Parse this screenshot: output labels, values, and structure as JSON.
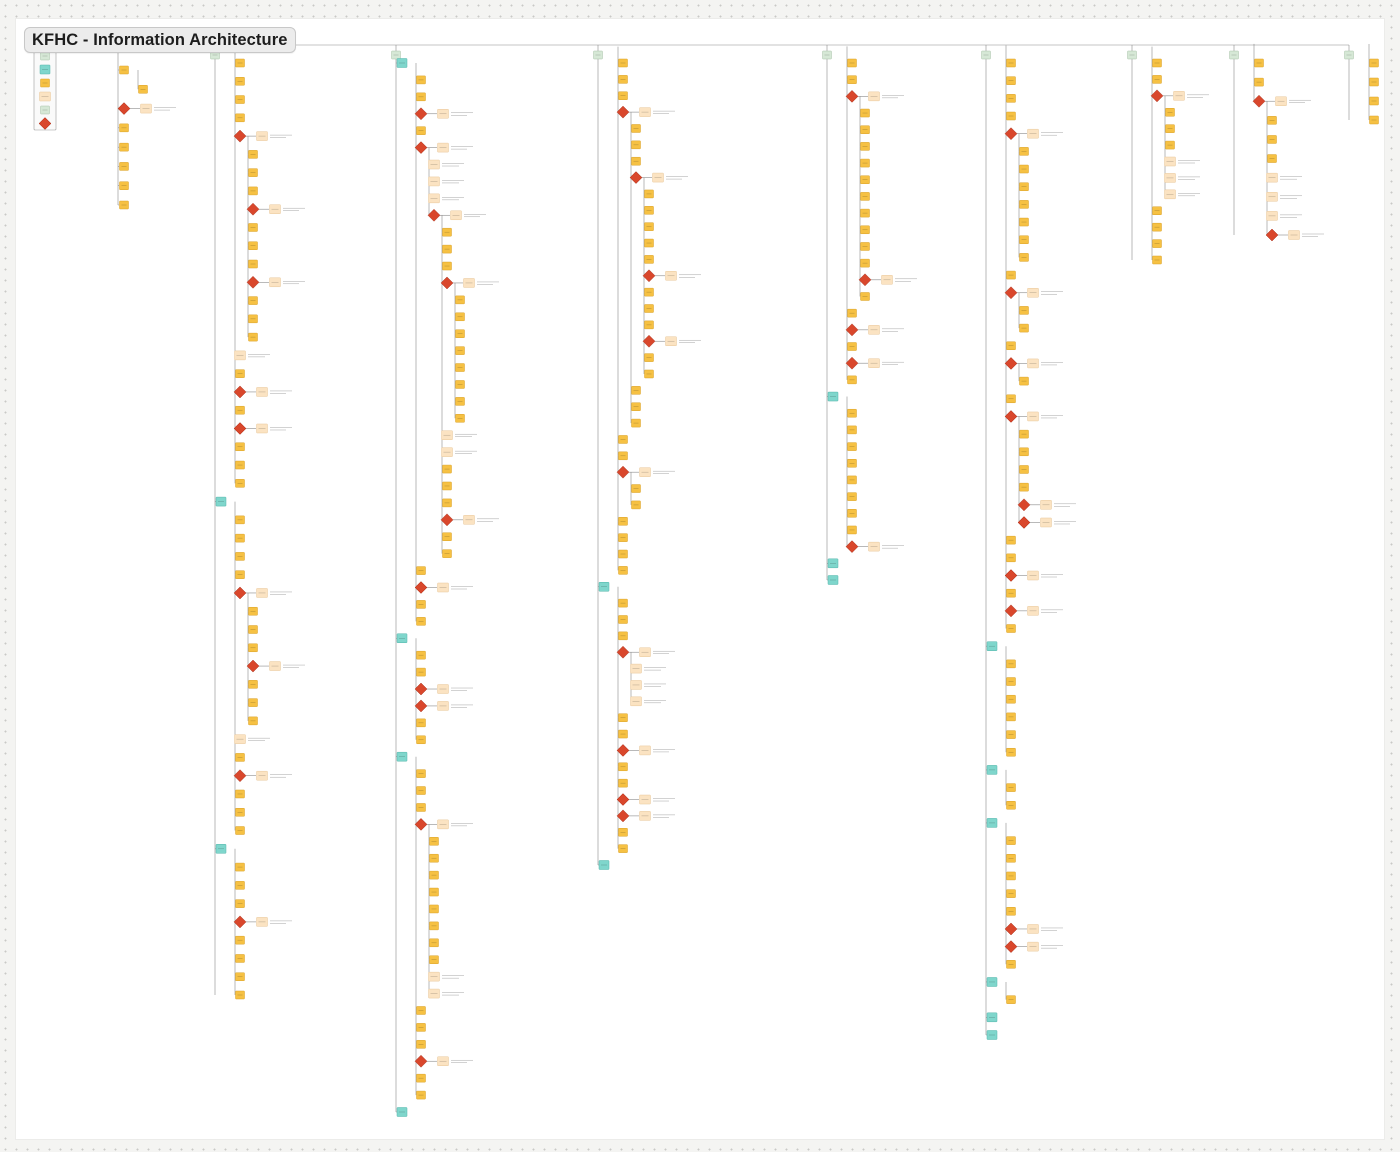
{
  "title": "KFHC - Information Architecture",
  "colors": {
    "canvas": "#f4f4f2",
    "board": "#ffffff",
    "page_node": "#f6c143",
    "page_node_border": "#d9a128",
    "section_node": "#7fd6cc",
    "section_node_border": "#52b5aa",
    "header_node": "#d6e8d6",
    "header_node_border": "#a8c2a8",
    "note_node": "#fbe3c2",
    "note_node_border": "#e8c79a",
    "decision": "#d9472c",
    "connector": "#8a8a8a"
  },
  "legend": {
    "items": [
      {
        "kind": "header"
      },
      {
        "kind": "section"
      },
      {
        "kind": "page"
      },
      {
        "kind": "note"
      },
      {
        "kind": "header"
      },
      {
        "kind": "decision"
      }
    ]
  },
  "columns": [
    {
      "x": 118,
      "start": 62,
      "end": 205,
      "header": false,
      "items": [
        [
          "P",
          0
        ],
        [
          "P",
          1
        ],
        [
          "D",
          0
        ],
        [
          "P",
          0
        ],
        [
          "P",
          0
        ],
        [
          "P",
          0
        ],
        [
          "P",
          0
        ],
        [
          "P",
          0
        ]
      ]
    },
    {
      "x": 215,
      "start": 55,
      "end": 995,
      "header": true,
      "items": [
        [
          "P",
          1
        ],
        [
          "P",
          1
        ],
        [
          "P",
          1
        ],
        [
          "P",
          1
        ],
        [
          "D",
          1
        ],
        [
          "P",
          2
        ],
        [
          "P",
          2
        ],
        [
          "P",
          2
        ],
        [
          "D",
          2
        ],
        [
          "P",
          2
        ],
        [
          "P",
          2
        ],
        [
          "P",
          2
        ],
        [
          "D",
          2
        ],
        [
          "P",
          2
        ],
        [
          "P",
          2
        ],
        [
          "P",
          2
        ],
        [
          "N",
          1
        ],
        [
          "P",
          1
        ],
        [
          "D",
          1
        ],
        [
          "P",
          1
        ],
        [
          "D",
          1
        ],
        [
          "P",
          1
        ],
        [
          "P",
          1
        ],
        [
          "P",
          1
        ],
        [
          "S",
          0
        ],
        [
          "P",
          1
        ],
        [
          "P",
          1
        ],
        [
          "P",
          1
        ],
        [
          "P",
          1
        ],
        [
          "D",
          1
        ],
        [
          "P",
          2
        ],
        [
          "P",
          2
        ],
        [
          "P",
          2
        ],
        [
          "D",
          2
        ],
        [
          "P",
          2
        ],
        [
          "P",
          2
        ],
        [
          "P",
          2
        ],
        [
          "N",
          1
        ],
        [
          "P",
          1
        ],
        [
          "D",
          1
        ],
        [
          "P",
          1
        ],
        [
          "P",
          1
        ],
        [
          "P",
          1
        ],
        [
          "S",
          0
        ],
        [
          "P",
          1
        ],
        [
          "P",
          1
        ],
        [
          "P",
          1
        ],
        [
          "D",
          1
        ],
        [
          "P",
          1
        ],
        [
          "P",
          1
        ],
        [
          "P",
          1
        ],
        [
          "P",
          1
        ]
      ]
    },
    {
      "x": 396,
      "start": 55,
      "end": 1112,
      "header": true,
      "items": [
        [
          "S",
          0
        ],
        [
          "P",
          1
        ],
        [
          "P",
          1
        ],
        [
          "D",
          1
        ],
        [
          "P",
          1
        ],
        [
          "D",
          1
        ],
        [
          "N",
          2
        ],
        [
          "N",
          2
        ],
        [
          "N",
          2
        ],
        [
          "D",
          2
        ],
        [
          "P",
          3
        ],
        [
          "P",
          3
        ],
        [
          "P",
          3
        ],
        [
          "D",
          3
        ],
        [
          "P",
          4
        ],
        [
          "P",
          4
        ],
        [
          "P",
          4
        ],
        [
          "P",
          4
        ],
        [
          "P",
          4
        ],
        [
          "P",
          4
        ],
        [
          "P",
          4
        ],
        [
          "P",
          4
        ],
        [
          "N",
          3
        ],
        [
          "N",
          3
        ],
        [
          "P",
          3
        ],
        [
          "P",
          3
        ],
        [
          "P",
          3
        ],
        [
          "D",
          3
        ],
        [
          "P",
          3
        ],
        [
          "P",
          3
        ],
        [
          "P",
          1
        ],
        [
          "D",
          1
        ],
        [
          "P",
          1
        ],
        [
          "P",
          1
        ],
        [
          "S",
          0
        ],
        [
          "P",
          1
        ],
        [
          "P",
          1
        ],
        [
          "D",
          1
        ],
        [
          "D",
          1
        ],
        [
          "P",
          1
        ],
        [
          "P",
          1
        ],
        [
          "S",
          0
        ],
        [
          "P",
          1
        ],
        [
          "P",
          1
        ],
        [
          "P",
          1
        ],
        [
          "D",
          1
        ],
        [
          "P",
          2
        ],
        [
          "P",
          2
        ],
        [
          "P",
          2
        ],
        [
          "P",
          2
        ],
        [
          "P",
          2
        ],
        [
          "P",
          2
        ],
        [
          "P",
          2
        ],
        [
          "P",
          2
        ],
        [
          "N",
          2
        ],
        [
          "N",
          2
        ],
        [
          "P",
          1
        ],
        [
          "P",
          1
        ],
        [
          "P",
          1
        ],
        [
          "D",
          1
        ],
        [
          "P",
          1
        ],
        [
          "P",
          1
        ],
        [
          "S",
          0
        ]
      ]
    },
    {
      "x": 598,
      "start": 55,
      "end": 865,
      "header": true,
      "items": [
        [
          "P",
          1
        ],
        [
          "P",
          1
        ],
        [
          "P",
          1
        ],
        [
          "D",
          1
        ],
        [
          "P",
          2
        ],
        [
          "P",
          2
        ],
        [
          "P",
          2
        ],
        [
          "D",
          2
        ],
        [
          "P",
          3
        ],
        [
          "P",
          3
        ],
        [
          "P",
          3
        ],
        [
          "P",
          3
        ],
        [
          "P",
          3
        ],
        [
          "D",
          3
        ],
        [
          "P",
          3
        ],
        [
          "P",
          3
        ],
        [
          "P",
          3
        ],
        [
          "D",
          3
        ],
        [
          "P",
          3
        ],
        [
          "P",
          3
        ],
        [
          "P",
          2
        ],
        [
          "P",
          2
        ],
        [
          "P",
          2
        ],
        [
          "P",
          1
        ],
        [
          "P",
          1
        ],
        [
          "D",
          1
        ],
        [
          "P",
          2
        ],
        [
          "P",
          2
        ],
        [
          "P",
          1
        ],
        [
          "P",
          1
        ],
        [
          "P",
          1
        ],
        [
          "P",
          1
        ],
        [
          "S",
          0
        ],
        [
          "P",
          1
        ],
        [
          "P",
          1
        ],
        [
          "P",
          1
        ],
        [
          "D",
          1
        ],
        [
          "N",
          2
        ],
        [
          "N",
          2
        ],
        [
          "N",
          2
        ],
        [
          "P",
          1
        ],
        [
          "P",
          1
        ],
        [
          "D",
          1
        ],
        [
          "P",
          1
        ],
        [
          "P",
          1
        ],
        [
          "D",
          1
        ],
        [
          "D",
          1
        ],
        [
          "P",
          1
        ],
        [
          "P",
          1
        ],
        [
          "S",
          0
        ]
      ]
    },
    {
      "x": 827,
      "start": 55,
      "end": 580,
      "header": true,
      "items": [
        [
          "P",
          1
        ],
        [
          "P",
          1
        ],
        [
          "D",
          1
        ],
        [
          "P",
          2
        ],
        [
          "P",
          2
        ],
        [
          "P",
          2
        ],
        [
          "P",
          2
        ],
        [
          "P",
          2
        ],
        [
          "P",
          2
        ],
        [
          "P",
          2
        ],
        [
          "P",
          2
        ],
        [
          "P",
          2
        ],
        [
          "P",
          2
        ],
        [
          "D",
          2
        ],
        [
          "P",
          2
        ],
        [
          "P",
          1
        ],
        [
          "D",
          1
        ],
        [
          "P",
          1
        ],
        [
          "D",
          1
        ],
        [
          "P",
          1
        ],
        [
          "S",
          0
        ],
        [
          "P",
          1
        ],
        [
          "P",
          1
        ],
        [
          "P",
          1
        ],
        [
          "P",
          1
        ],
        [
          "P",
          1
        ],
        [
          "P",
          1
        ],
        [
          "P",
          1
        ],
        [
          "P",
          1
        ],
        [
          "D",
          1
        ],
        [
          "S",
          0
        ],
        [
          "S",
          0
        ]
      ]
    },
    {
      "x": 986,
      "start": 55,
      "end": 1035,
      "header": true,
      "items": [
        [
          "P",
          1
        ],
        [
          "P",
          1
        ],
        [
          "P",
          1
        ],
        [
          "P",
          1
        ],
        [
          "D",
          1
        ],
        [
          "P",
          2
        ],
        [
          "P",
          2
        ],
        [
          "P",
          2
        ],
        [
          "P",
          2
        ],
        [
          "P",
          2
        ],
        [
          "P",
          2
        ],
        [
          "P",
          2
        ],
        [
          "P",
          1
        ],
        [
          "D",
          1
        ],
        [
          "P",
          2
        ],
        [
          "P",
          2
        ],
        [
          "P",
          1
        ],
        [
          "D",
          1
        ],
        [
          "P",
          2
        ],
        [
          "P",
          1
        ],
        [
          "D",
          1
        ],
        [
          "P",
          2
        ],
        [
          "P",
          2
        ],
        [
          "P",
          2
        ],
        [
          "P",
          2
        ],
        [
          "D",
          2
        ],
        [
          "D",
          2
        ],
        [
          "P",
          1
        ],
        [
          "P",
          1
        ],
        [
          "D",
          1
        ],
        [
          "P",
          1
        ],
        [
          "D",
          1
        ],
        [
          "P",
          1
        ],
        [
          "S",
          0
        ],
        [
          "P",
          1
        ],
        [
          "P",
          1
        ],
        [
          "P",
          1
        ],
        [
          "P",
          1
        ],
        [
          "P",
          1
        ],
        [
          "P",
          1
        ],
        [
          "S",
          0
        ],
        [
          "P",
          1
        ],
        [
          "P",
          1
        ],
        [
          "S",
          0
        ],
        [
          "P",
          1
        ],
        [
          "P",
          1
        ],
        [
          "P",
          1
        ],
        [
          "P",
          1
        ],
        [
          "P",
          1
        ],
        [
          "D",
          1
        ],
        [
          "D",
          1
        ],
        [
          "P",
          1
        ],
        [
          "S",
          0
        ],
        [
          "P",
          1
        ],
        [
          "S",
          0
        ],
        [
          "S",
          0
        ]
      ]
    },
    {
      "x": 1132,
      "start": 55,
      "end": 260,
      "header": true,
      "items": [
        [
          "P",
          1
        ],
        [
          "P",
          1
        ],
        [
          "D",
          1
        ],
        [
          "P",
          2
        ],
        [
          "P",
          2
        ],
        [
          "P",
          2
        ],
        [
          "N",
          2
        ],
        [
          "N",
          2
        ],
        [
          "N",
          2
        ],
        [
          "P",
          1
        ],
        [
          "P",
          1
        ],
        [
          "P",
          1
        ],
        [
          "P",
          1
        ]
      ]
    },
    {
      "x": 1234,
      "start": 55,
      "end": 235,
      "header": true,
      "items": [
        [
          "P",
          1
        ],
        [
          "P",
          1
        ],
        [
          "D",
          1
        ],
        [
          "P",
          2
        ],
        [
          "P",
          2
        ],
        [
          "P",
          2
        ],
        [
          "N",
          2
        ],
        [
          "N",
          2
        ],
        [
          "N",
          2
        ],
        [
          "D",
          2
        ]
      ]
    },
    {
      "x": 1349,
      "start": 55,
      "end": 120,
      "header": true,
      "items": [
        [
          "P",
          1
        ],
        [
          "P",
          1
        ],
        [
          "P",
          1
        ],
        [
          "P",
          1
        ]
      ]
    }
  ]
}
